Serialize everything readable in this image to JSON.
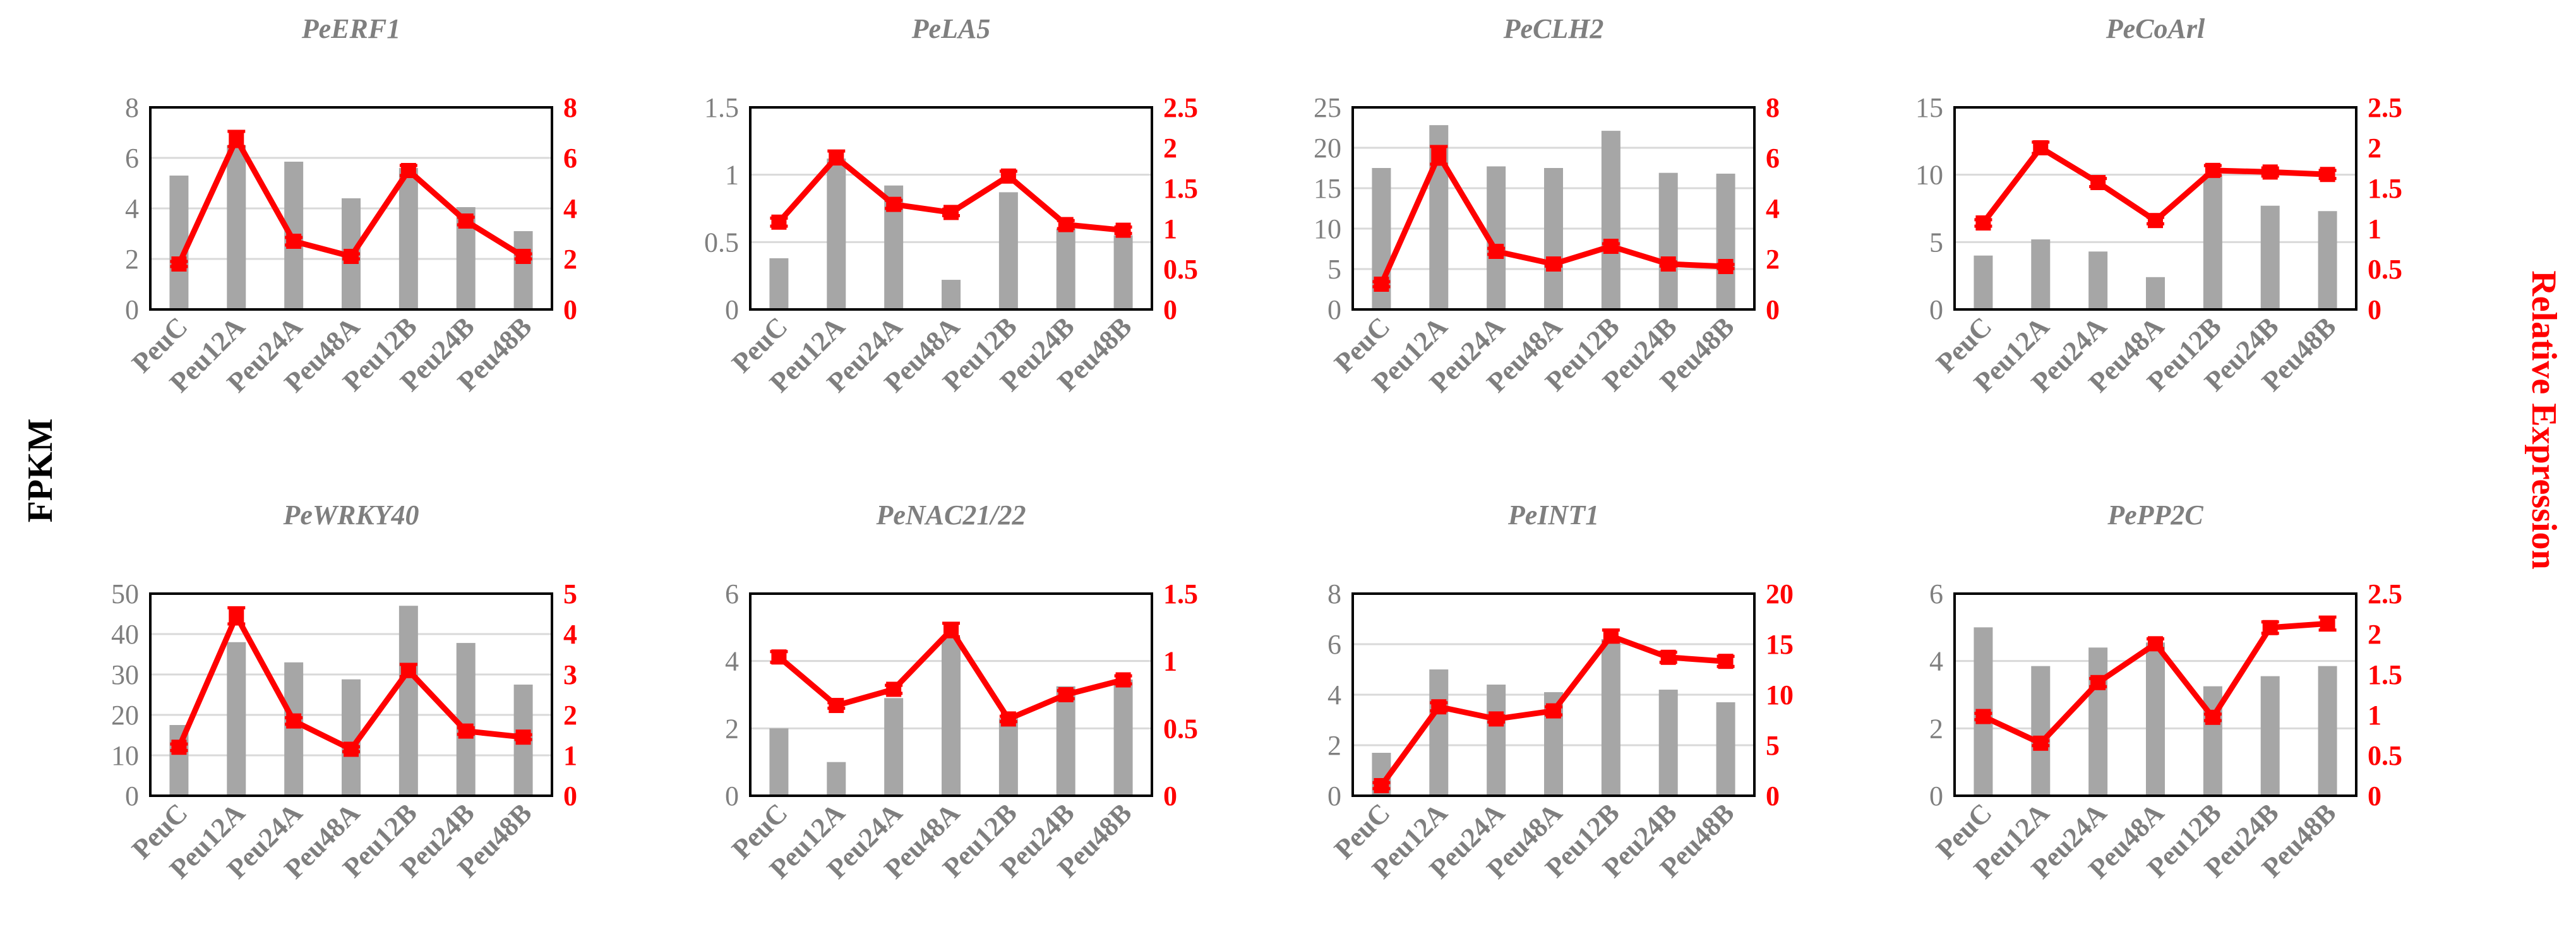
{
  "figure": {
    "left_axis_label": "FPKM",
    "right_axis_label": "Relative Expression",
    "bar_color": "#a6a6a6",
    "line_color": "#ff0000",
    "text_color": "#7f7f7f"
  },
  "chart_data": [
    {
      "type": "bar+line",
      "title": "PeERF1",
      "categories": [
        "PeuC",
        "Peu12A",
        "Peu24A",
        "Peu48A",
        "Peu12B",
        "Peu24B",
        "Peu48B"
      ],
      "ylim_left": [
        0,
        8
      ],
      "yticks_left": [
        "0",
        "2",
        "4",
        "6",
        "8"
      ],
      "ylim_right": [
        0,
        8
      ],
      "yticks_right": [
        "0",
        "2",
        "4",
        "6",
        "8"
      ],
      "series": [
        {
          "name": "FPKM",
          "axis": "left",
          "values": [
            5.3,
            6.5,
            5.85,
            4.4,
            5.6,
            4.05,
            3.1
          ]
        },
        {
          "name": "Relative Expression",
          "axis": "right",
          "values": [
            1.8,
            6.75,
            2.7,
            2.1,
            5.5,
            3.5,
            2.1
          ],
          "errors": [
            0.1,
            0.3,
            0.15,
            0.1,
            0.2,
            0.15,
            0.1
          ]
        }
      ]
    },
    {
      "type": "bar+line",
      "title": "PeLA5",
      "categories": [
        "PeuC",
        "Peu12A",
        "Peu24A",
        "Peu48A",
        "Peu12B",
        "Peu24B",
        "Peu48B"
      ],
      "ylim_left": [
        0,
        1.5
      ],
      "yticks_left": [
        "0",
        "0.5",
        "1",
        "1.5"
      ],
      "ylim_right": [
        0,
        2.5
      ],
      "yticks_right": [
        "0",
        "0.5",
        "1",
        "1.5",
        "2",
        "2.5"
      ],
      "series": [
        {
          "name": "FPKM",
          "axis": "left",
          "values": [
            0.38,
            1.12,
            0.92,
            0.22,
            0.87,
            0.6,
            0.55
          ]
        },
        {
          "name": "Relative Expression",
          "axis": "right",
          "values": [
            1.08,
            1.88,
            1.3,
            1.2,
            1.65,
            1.05,
            0.98
          ],
          "errors": [
            0.05,
            0.08,
            0.05,
            0.04,
            0.06,
            0.05,
            0.04
          ]
        }
      ]
    },
    {
      "type": "bar+line",
      "title": "PeCLH2",
      "categories": [
        "PeuC",
        "Peu12A",
        "Peu24A",
        "Peu48A",
        "Peu12B",
        "Peu24B",
        "Peu48B"
      ],
      "ylim_left": [
        0,
        25
      ],
      "yticks_left": [
        "0",
        "5",
        "10",
        "15",
        "20",
        "25"
      ],
      "ylim_right": [
        0,
        8
      ],
      "yticks_right": [
        "0",
        "2",
        "4",
        "6",
        "8"
      ],
      "series": [
        {
          "name": "FPKM",
          "axis": "left",
          "values": [
            17.5,
            22.8,
            17.7,
            17.5,
            22.1,
            16.9,
            16.8
          ]
        },
        {
          "name": "Relative Expression",
          "axis": "right",
          "values": [
            1.0,
            6.1,
            2.3,
            1.8,
            2.5,
            1.8,
            1.7
          ],
          "errors": [
            0.1,
            0.35,
            0.12,
            0.08,
            0.1,
            0.08,
            0.08
          ]
        }
      ]
    },
    {
      "type": "bar+line",
      "title": "PeCoArl",
      "categories": [
        "PeuC",
        "Peu12A",
        "Peu24A",
        "Peu48A",
        "Peu12B",
        "Peu24B",
        "Peu48B"
      ],
      "ylim_left": [
        0,
        15
      ],
      "yticks_left": [
        "0",
        "5",
        "10",
        "15"
      ],
      "ylim_right": [
        0,
        2.5
      ],
      "yticks_right": [
        "0",
        "0.5",
        "1",
        "1.5",
        "2",
        "2.5"
      ],
      "series": [
        {
          "name": "FPKM",
          "axis": "left",
          "values": [
            4.0,
            5.2,
            4.3,
            2.4,
            10.0,
            7.7,
            7.3
          ]
        },
        {
          "name": "Relative Expression",
          "axis": "right",
          "values": [
            1.07,
            2.0,
            1.57,
            1.1,
            1.72,
            1.7,
            1.67
          ],
          "errors": [
            0.04,
            0.07,
            0.05,
            0.04,
            0.06,
            0.05,
            0.05
          ]
        }
      ]
    },
    {
      "type": "bar+line",
      "title": "PeWRKY40",
      "categories": [
        "PeuC",
        "Peu12A",
        "Peu24A",
        "Peu48A",
        "Peu12B",
        "Peu24B",
        "Peu48B"
      ],
      "ylim_left": [
        0,
        50
      ],
      "yticks_left": [
        "0",
        "10",
        "20",
        "30",
        "40",
        "50"
      ],
      "ylim_right": [
        0,
        5
      ],
      "yticks_right": [
        "0",
        "1",
        "2",
        "3",
        "4",
        "5"
      ],
      "series": [
        {
          "name": "FPKM",
          "axis": "left",
          "values": [
            17.5,
            38.0,
            33.0,
            28.8,
            47.0,
            37.8,
            27.5
          ]
        },
        {
          "name": "Relative Expression",
          "axis": "right",
          "values": [
            1.2,
            4.45,
            1.85,
            1.15,
            3.1,
            1.6,
            1.45
          ],
          "errors": [
            0.08,
            0.2,
            0.08,
            0.06,
            0.15,
            0.08,
            0.06
          ]
        }
      ]
    },
    {
      "type": "bar+line",
      "title": "PeNAC21/22",
      "categories": [
        "PeuC",
        "Peu12A",
        "Peu24A",
        "Peu48A",
        "Peu12B",
        "Peu24B",
        "Peu48B"
      ],
      "ylim_left": [
        0,
        6
      ],
      "yticks_left": [
        "0",
        "2",
        "4",
        "6"
      ],
      "ylim_right": [
        0,
        1.5
      ],
      "yticks_right": [
        "0",
        "0.5",
        "1",
        "1.5"
      ],
      "series": [
        {
          "name": "FPKM",
          "axis": "left",
          "values": [
            2.0,
            1.0,
            2.9,
            4.7,
            2.3,
            3.25,
            3.45
          ]
        },
        {
          "name": "Relative Expression",
          "axis": "right",
          "values": [
            1.03,
            0.67,
            0.79,
            1.23,
            0.57,
            0.75,
            0.86
          ],
          "errors": [
            0.04,
            0.02,
            0.03,
            0.05,
            0.02,
            0.03,
            0.03
          ]
        }
      ]
    },
    {
      "type": "bar+line",
      "title": "PeINT1",
      "categories": [
        "PeuC",
        "Peu12A",
        "Peu24A",
        "Peu48A",
        "Peu12B",
        "Peu24B",
        "Peu48B"
      ],
      "ylim_left": [
        0,
        8
      ],
      "yticks_left": [
        "0",
        "2",
        "4",
        "6",
        "8"
      ],
      "ylim_right": [
        0,
        20
      ],
      "yticks_right": [
        "0",
        "5",
        "10",
        "15",
        "20"
      ],
      "series": [
        {
          "name": "FPKM",
          "axis": "left",
          "values": [
            1.7,
            5.0,
            4.4,
            4.1,
            6.2,
            4.2,
            3.7
          ]
        },
        {
          "name": "Relative Expression",
          "axis": "right",
          "values": [
            1.0,
            8.8,
            7.6,
            8.4,
            15.8,
            13.7,
            13.3
          ],
          "errors": [
            0.3,
            0.4,
            0.3,
            0.4,
            0.6,
            0.5,
            0.5
          ]
        }
      ]
    },
    {
      "type": "bar+line",
      "title": "PePP2C",
      "categories": [
        "PeuC",
        "Peu12A",
        "Peu24A",
        "Peu48A",
        "Peu12B",
        "Peu24B",
        "Peu48B"
      ],
      "ylim_left": [
        0,
        6
      ],
      "yticks_left": [
        "0",
        "2",
        "4",
        "6"
      ],
      "ylim_right": [
        0,
        2.5
      ],
      "yticks_right": [
        "0",
        "0.5",
        "1",
        "1.5",
        "2",
        "2.5"
      ],
      "series": [
        {
          "name": "FPKM",
          "axis": "left",
          "values": [
            5.0,
            3.85,
            4.4,
            4.55,
            3.25,
            3.55,
            3.85
          ]
        },
        {
          "name": "Relative Expression",
          "axis": "right",
          "values": [
            0.98,
            0.65,
            1.4,
            1.88,
            0.97,
            2.08,
            2.13
          ],
          "errors": [
            0.04,
            0.03,
            0.05,
            0.06,
            0.04,
            0.07,
            0.08
          ]
        }
      ]
    }
  ]
}
